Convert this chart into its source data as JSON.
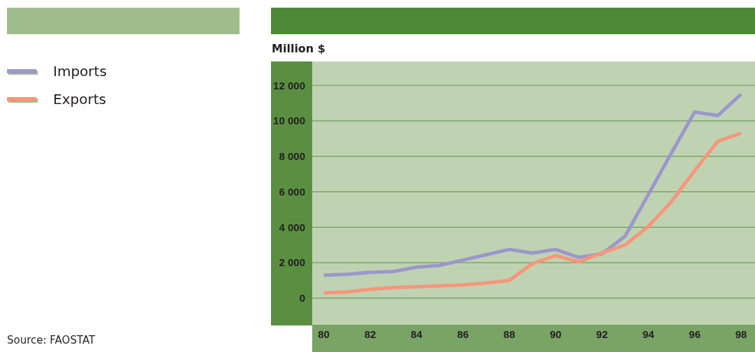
{
  "chart_data": {
    "type": "line",
    "ylabel": "Million $",
    "x": [
      80,
      81,
      82,
      83,
      84,
      85,
      86,
      87,
      88,
      89,
      90,
      91,
      92,
      93,
      94,
      95,
      96,
      97,
      98
    ],
    "series": [
      {
        "name": "Imports",
        "color": "#9c97cb",
        "values": [
          1300,
          1350,
          1450,
          1500,
          1750,
          1850,
          2150,
          2450,
          2750,
          2550,
          2750,
          2300,
          2500,
          3500,
          5850,
          8200,
          10500,
          10300,
          11500
        ]
      },
      {
        "name": "Exports",
        "color": "#f7967a",
        "values": [
          300,
          350,
          500,
          600,
          650,
          700,
          750,
          850,
          1000,
          1950,
          2400,
          2050,
          2550,
          3000,
          4050,
          5450,
          7200,
          8850,
          9300
        ]
      }
    ],
    "xlim": [
      79.5,
      98.6
    ],
    "xticks": [
      80,
      82,
      84,
      86,
      88,
      90,
      92,
      94,
      96,
      98
    ],
    "ylim": [
      -1500,
      13350
    ],
    "yticks": [
      0,
      {
        "value": 2000,
        "label": "2 000"
      },
      {
        "value": 4000,
        "label": "4 000"
      },
      {
        "value": 6000,
        "label": "6 000"
      },
      {
        "value": 8000,
        "label": "8 000"
      },
      {
        "value": 10000,
        "label": "10 000"
      },
      {
        "value": 12000,
        "label": "12 000"
      }
    ],
    "grid": "y",
    "legend": "left",
    "marker": "none",
    "line_style": "solid",
    "annotations": [
      "Source: FAOSTAT"
    ]
  }
}
